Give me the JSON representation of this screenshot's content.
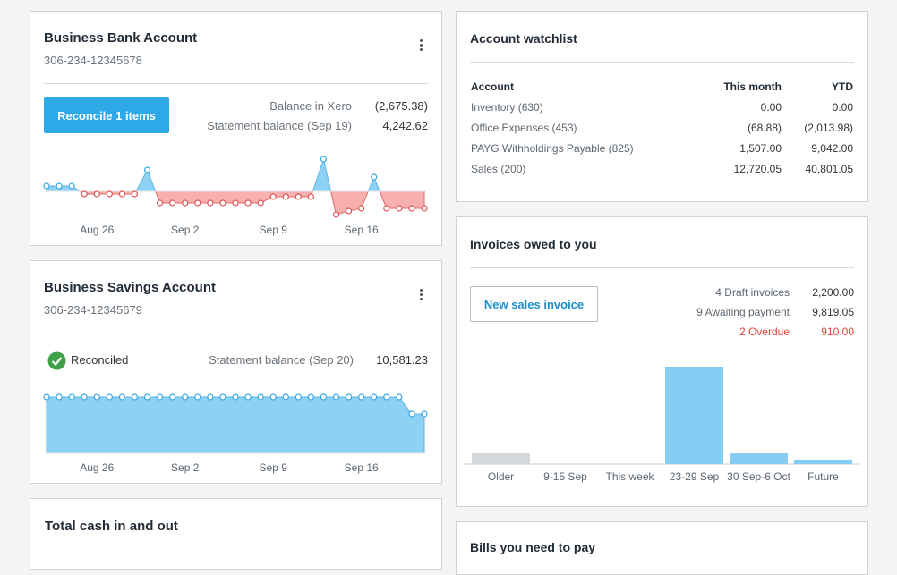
{
  "bank": {
    "title": "Business Bank Account",
    "number": "306-234-12345678",
    "button": "Reconcile 1 items",
    "rows": [
      {
        "label": "Balance in Xero",
        "value": "(2,675.38)"
      },
      {
        "label": "Statement balance (Sep 19)",
        "value": "4,242.62"
      }
    ],
    "chart": {
      "type": "line",
      "x_labels": [
        "Aug 26",
        "Sep 2",
        "Sep 9",
        "Sep 16"
      ],
      "values": [
        6,
        6,
        6,
        -3,
        -3,
        -3,
        -3,
        -3,
        24,
        -13,
        -13,
        -13,
        -13,
        -13,
        -13,
        -13,
        -13,
        -13,
        -6,
        -6,
        -6,
        -6,
        36,
        -26,
        -22,
        -19,
        16,
        -19,
        -19,
        -19,
        -19
      ],
      "ylim": [
        -30,
        40
      ]
    }
  },
  "savings": {
    "title": "Business Savings Account",
    "number": "306-234-12345679",
    "status": "Reconciled",
    "rows": [
      {
        "label": "Statement balance (Sep 20)",
        "value": "10,581.23"
      }
    ],
    "chart": {
      "type": "line",
      "x_labels": [
        "Aug 26",
        "Sep 2",
        "Sep 9",
        "Sep 16"
      ],
      "values": [
        63,
        63,
        63,
        63,
        63,
        63,
        63,
        63,
        63,
        63,
        63,
        63,
        63,
        63,
        63,
        63,
        63,
        63,
        63,
        63,
        63,
        63,
        63,
        63,
        63,
        63,
        63,
        63,
        63,
        44,
        44
      ],
      "ylim": [
        0,
        70
      ]
    }
  },
  "cash": {
    "title": "Total cash in and out"
  },
  "watchlist": {
    "title": "Account watchlist",
    "columns": [
      "Account",
      "This month",
      "YTD"
    ],
    "rows": [
      [
        "Inventory (630)",
        "0.00",
        "0.00"
      ],
      [
        "Office Expenses (453)",
        "(68.88)",
        "(2,013.98)"
      ],
      [
        "PAYG Withholdings Payable (825)",
        "1,507.00",
        "9,042.00"
      ],
      [
        "Sales (200)",
        "12,720.05",
        "40,801.05"
      ]
    ]
  },
  "invoices": {
    "title": "Invoices owed to you",
    "button": "New sales invoice",
    "summary": [
      [
        "4 Draft invoices",
        "2,200.00"
      ],
      [
        "9 Awaiting payment",
        "9,819.05"
      ],
      [
        "2 Overdue",
        "910.00"
      ]
    ],
    "chart": {
      "type": "bar",
      "categories": [
        "Older",
        "9-15 Sep",
        "This week",
        "23-29 Sep",
        "30 Sep-6 Oct",
        "Future"
      ],
      "values": [
        900,
        0,
        0,
        8200,
        900,
        380
      ],
      "ylim": [
        0,
        8200
      ]
    }
  },
  "bills": {
    "title": "Bills you need to pay"
  }
}
